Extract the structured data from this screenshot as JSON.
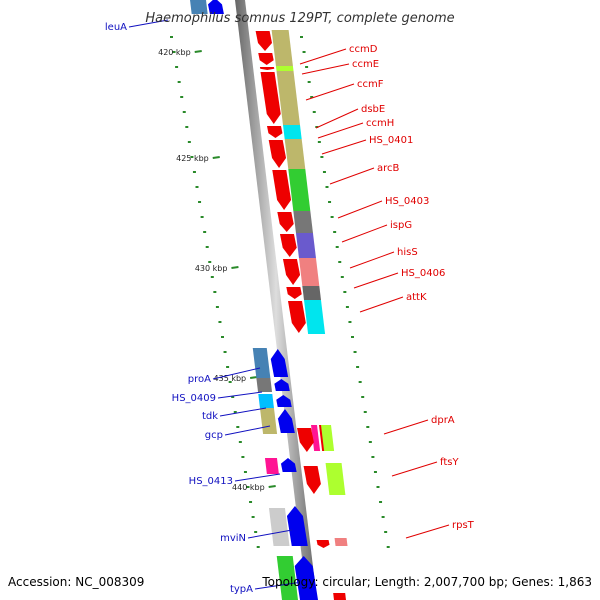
{
  "title": "Haemophilus somnus 129PT, complete genome",
  "accession": "Accession: NC_008309",
  "stats": "Topology: circular; Length: 2,007,700 bp; Genes: 1,863",
  "scale_labels": [
    "420 kbp",
    "425 kbp",
    "430 kbp",
    "435 kbp",
    "440 kbp"
  ],
  "label_colors": {
    "forward": "#e00000",
    "reverse": "#1010c0"
  },
  "forward_labels": [
    "ccmD",
    "ccmE",
    "ccmF",
    "dsbE",
    "ccmH",
    "HS_0401",
    "arcB",
    "HS_0403",
    "ispG",
    "hisS",
    "HS_0406",
    "attK",
    "dprA",
    "ftsY",
    "rpsT"
  ],
  "reverse_labels": [
    "leuA",
    "proA",
    "HS_0409",
    "tdk",
    "gcp",
    "HS_0413",
    "mviN",
    "typA"
  ]
}
